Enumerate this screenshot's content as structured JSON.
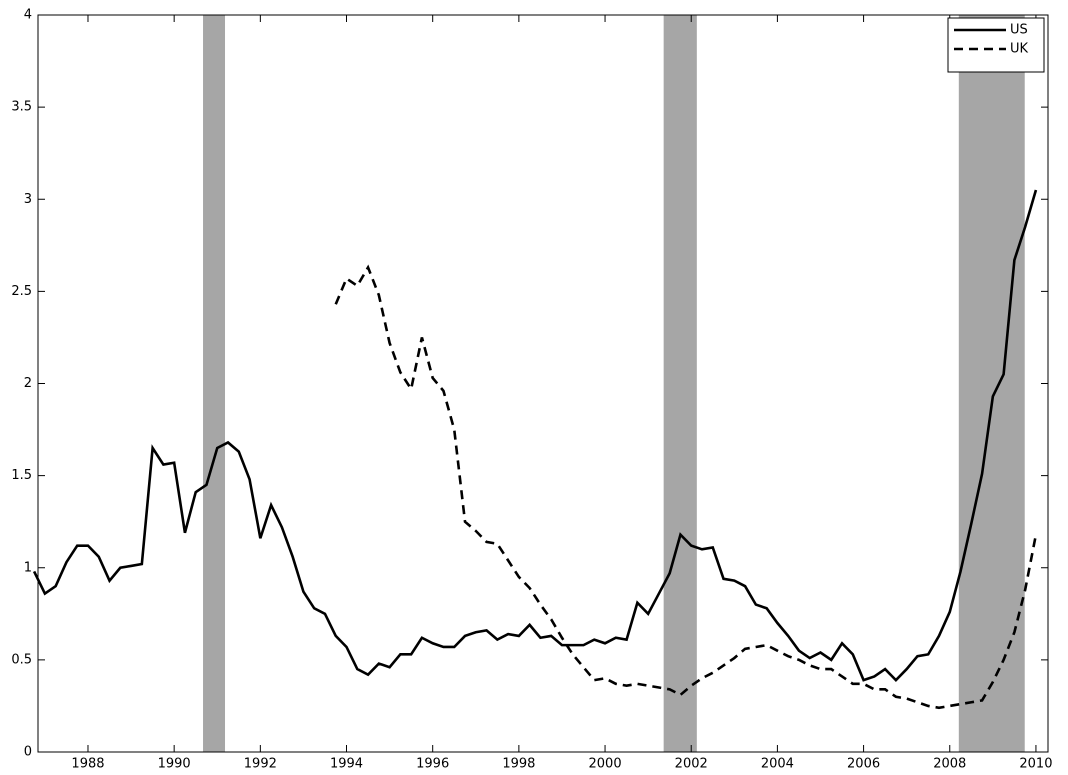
{
  "chart_data": {
    "type": "line",
    "x": [
      1986.75,
      1987,
      1987.25,
      1987.5,
      1987.75,
      1988,
      1988.25,
      1988.5,
      1988.75,
      1989,
      1989.25,
      1989.5,
      1989.75,
      1990,
      1990.25,
      1990.5,
      1990.75,
      1991,
      1991.25,
      1991.5,
      1991.75,
      1992,
      1992.25,
      1992.5,
      1992.75,
      1993,
      1993.25,
      1993.5,
      1993.75,
      1994,
      1994.25,
      1994.5,
      1994.75,
      1995,
      1995.25,
      1995.5,
      1995.75,
      1996,
      1996.25,
      1996.5,
      1996.75,
      1997,
      1997.25,
      1997.5,
      1997.75,
      1998,
      1998.25,
      1998.5,
      1998.75,
      1999,
      1999.25,
      1999.5,
      1999.75,
      2000,
      2000.25,
      2000.5,
      2000.75,
      2001,
      2001.25,
      2001.5,
      2001.75,
      2002,
      2002.25,
      2002.5,
      2002.75,
      2003,
      2003.25,
      2003.5,
      2003.75,
      2004,
      2004.25,
      2004.5,
      2004.75,
      2005,
      2005.25,
      2005.5,
      2005.75,
      2006,
      2006.25,
      2006.5,
      2006.75,
      2007,
      2007.25,
      2007.5,
      2007.75,
      2008,
      2008.25,
      2008.5,
      2008.75,
      2009,
      2009.25,
      2009.5,
      2009.75,
      2010
    ],
    "series": [
      {
        "name": "US",
        "color": "#000000",
        "dash": "solid",
        "values": [
          0.98,
          0.86,
          0.9,
          1.03,
          1.12,
          1.12,
          1.06,
          0.93,
          1.0,
          1.01,
          1.02,
          1.65,
          1.56,
          1.57,
          1.19,
          1.41,
          1.45,
          1.65,
          1.68,
          1.63,
          1.48,
          1.16,
          1.34,
          1.22,
          1.06,
          0.87,
          0.78,
          0.75,
          0.63,
          0.57,
          0.45,
          0.42,
          0.48,
          0.46,
          0.53,
          0.53,
          0.62,
          0.59,
          0.57,
          0.57,
          0.63,
          0.65,
          0.66,
          0.61,
          0.64,
          0.63,
          0.69,
          0.62,
          0.63,
          0.58,
          0.58,
          0.58,
          0.61,
          0.59,
          0.62,
          0.61,
          0.81,
          0.75,
          0.86,
          0.97,
          1.18,
          1.12,
          1.1,
          1.11,
          0.94,
          0.93,
          0.9,
          0.8,
          0.78,
          0.7,
          0.63,
          0.55,
          0.51,
          0.54,
          0.5,
          0.59,
          0.53,
          0.39,
          0.41,
          0.45,
          0.39,
          0.45,
          0.52,
          0.53,
          0.63,
          0.76,
          0.98,
          1.24,
          1.51,
          1.93,
          2.05,
          2.67,
          2.85,
          3.05
        ]
      },
      {
        "name": "UK",
        "color": "#000000",
        "dash": "dashed",
        "values": [
          null,
          null,
          null,
          null,
          null,
          null,
          null,
          null,
          null,
          null,
          null,
          null,
          null,
          null,
          null,
          null,
          null,
          null,
          null,
          null,
          null,
          null,
          null,
          null,
          null,
          null,
          null,
          null,
          2.43,
          2.57,
          2.53,
          2.63,
          2.48,
          2.22,
          2.06,
          1.97,
          2.25,
          2.03,
          1.96,
          1.75,
          1.25,
          1.2,
          1.14,
          1.13,
          1.04,
          0.95,
          0.89,
          0.8,
          0.72,
          0.62,
          0.53,
          0.46,
          0.39,
          0.4,
          0.37,
          0.36,
          0.37,
          0.36,
          0.35,
          0.34,
          0.31,
          0.36,
          0.4,
          0.43,
          0.47,
          0.51,
          0.56,
          0.57,
          0.58,
          0.55,
          0.52,
          0.5,
          0.47,
          0.45,
          0.45,
          0.41,
          0.37,
          0.37,
          0.34,
          0.34,
          0.3,
          0.29,
          0.27,
          0.25,
          0.24,
          0.25,
          0.26,
          0.27,
          0.28,
          0.38,
          0.5,
          0.65,
          0.88,
          1.18
        ]
      }
    ],
    "shaded_regions": [
      {
        "start": 1990.67,
        "end": 1991.18
      },
      {
        "start": 2001.36,
        "end": 2002.13
      },
      {
        "start": 2008.21,
        "end": 2009.74
      }
    ],
    "shade_color": "#a6a6a6",
    "xlim": [
      1986.84,
      2010.28
    ],
    "xticks": [
      1988,
      1990,
      1992,
      1994,
      1996,
      1998,
      2000,
      2002,
      2004,
      2006,
      2008,
      2010
    ],
    "ylim": [
      0,
      4
    ],
    "yticks": [
      0,
      0.5,
      1,
      1.5,
      2,
      2.5,
      3,
      3.5,
      4
    ],
    "grid": false,
    "legend": "top-right"
  }
}
